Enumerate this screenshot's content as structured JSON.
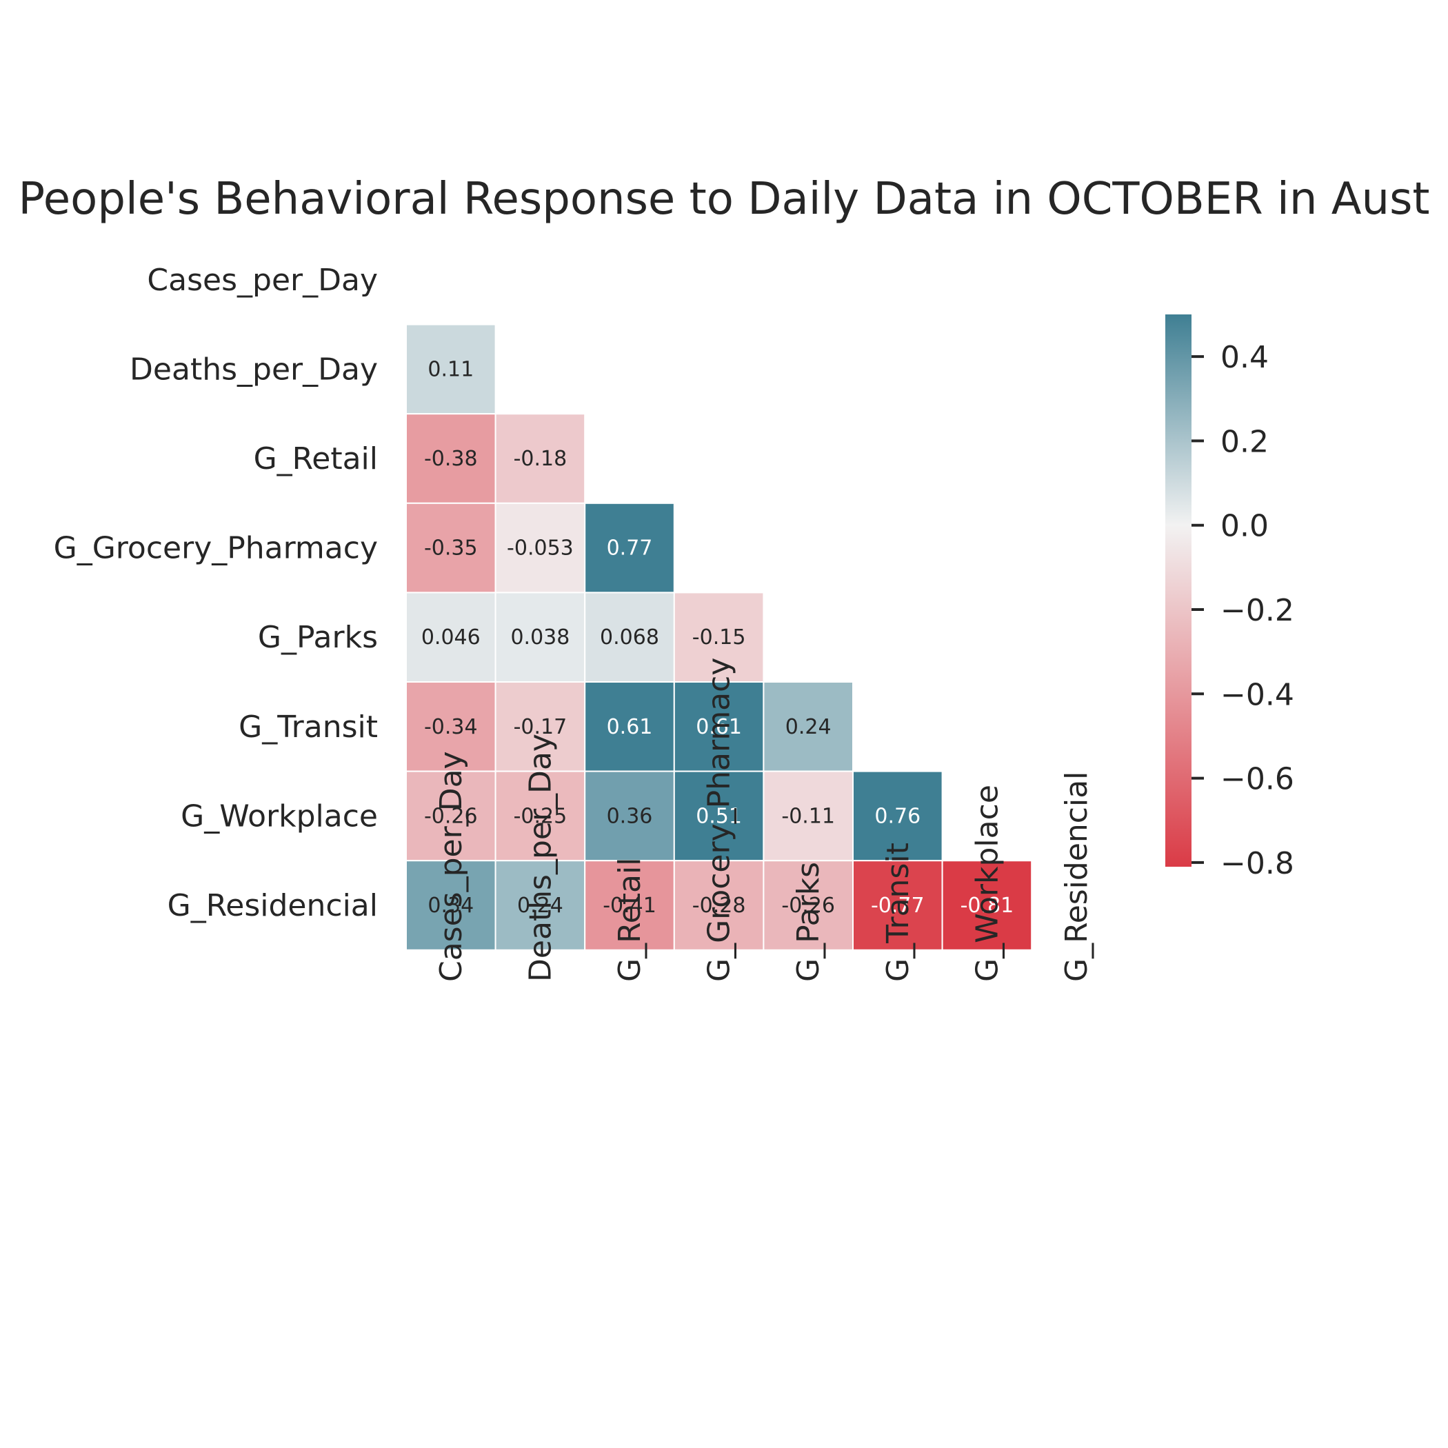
{
  "chart_data": {
    "type": "heatmap",
    "title": "People's Behavioral Response to Daily Data in OCTOBER in Aust",
    "rows": [
      "Cases_per_Day",
      "Deaths_per_Day",
      "G_Retail",
      "G_Grocery_Pharmacy",
      "G_Parks",
      "G_Transit",
      "G_Workplace",
      "G_Residencial"
    ],
    "columns": [
      "Cases_per_Day",
      "Deaths_per_Day",
      "G_Retail",
      "G_Grocery_Pharmacy",
      "G_Parks",
      "G_Transit",
      "G_Workplace",
      "G_Residencial"
    ],
    "mask": "upper-triangle-including-diagonal",
    "cells": [
      {
        "row": 1,
        "col": 0,
        "value": 0.11,
        "label": "0.11"
      },
      {
        "row": 2,
        "col": 0,
        "value": -0.38,
        "label": "-0.38"
      },
      {
        "row": 2,
        "col": 1,
        "value": -0.18,
        "label": "-0.18"
      },
      {
        "row": 3,
        "col": 0,
        "value": -0.35,
        "label": "-0.35"
      },
      {
        "row": 3,
        "col": 1,
        "value": -0.053,
        "label": "-0.053"
      },
      {
        "row": 3,
        "col": 2,
        "value": 0.77,
        "label": "0.77"
      },
      {
        "row": 4,
        "col": 0,
        "value": 0.046,
        "label": "0.046"
      },
      {
        "row": 4,
        "col": 1,
        "value": 0.038,
        "label": "0.038"
      },
      {
        "row": 4,
        "col": 2,
        "value": 0.068,
        "label": "0.068"
      },
      {
        "row": 4,
        "col": 3,
        "value": -0.15,
        "label": "-0.15"
      },
      {
        "row": 5,
        "col": 0,
        "value": -0.34,
        "label": "-0.34"
      },
      {
        "row": 5,
        "col": 1,
        "value": -0.17,
        "label": "-0.17"
      },
      {
        "row": 5,
        "col": 2,
        "value": 0.61,
        "label": "0.61"
      },
      {
        "row": 5,
        "col": 3,
        "value": 0.61,
        "label": "0.61"
      },
      {
        "row": 5,
        "col": 4,
        "value": 0.24,
        "label": "0.24"
      },
      {
        "row": 6,
        "col": 0,
        "value": -0.26,
        "label": "-0.26"
      },
      {
        "row": 6,
        "col": 1,
        "value": -0.25,
        "label": "-0.25"
      },
      {
        "row": 6,
        "col": 2,
        "value": 0.36,
        "label": "0.36"
      },
      {
        "row": 6,
        "col": 3,
        "value": 0.51,
        "label": "0.51"
      },
      {
        "row": 6,
        "col": 4,
        "value": -0.11,
        "label": "-0.11"
      },
      {
        "row": 6,
        "col": 5,
        "value": 0.76,
        "label": "0.76"
      },
      {
        "row": 7,
        "col": 0,
        "value": 0.34,
        "label": "0.34"
      },
      {
        "row": 7,
        "col": 1,
        "value": 0.24,
        "label": "0.24"
      },
      {
        "row": 7,
        "col": 2,
        "value": -0.41,
        "label": "-0.41"
      },
      {
        "row": 7,
        "col": 3,
        "value": -0.28,
        "label": "-0.28"
      },
      {
        "row": 7,
        "col": 4,
        "value": -0.26,
        "label": "-0.26"
      },
      {
        "row": 7,
        "col": 5,
        "value": -0.77,
        "label": "-0.77"
      },
      {
        "row": 7,
        "col": 6,
        "value": -0.81,
        "label": "-0.81"
      }
    ],
    "colorbar": {
      "vmin": -0.81,
      "vmax": 0.5,
      "ticks": [
        0.4,
        0.2,
        0.0,
        -0.2,
        -0.4,
        -0.6,
        -0.8
      ],
      "tick_labels": [
        "0.4",
        "0.2",
        "0.0",
        "−0.2",
        "−0.4",
        "−0.6",
        "−0.8"
      ],
      "colors": {
        "negative": "#da3b46",
        "center": "#f2f2f2",
        "positive": "#3f7f93"
      }
    },
    "grid": false,
    "legend": "colorbar-right"
  }
}
